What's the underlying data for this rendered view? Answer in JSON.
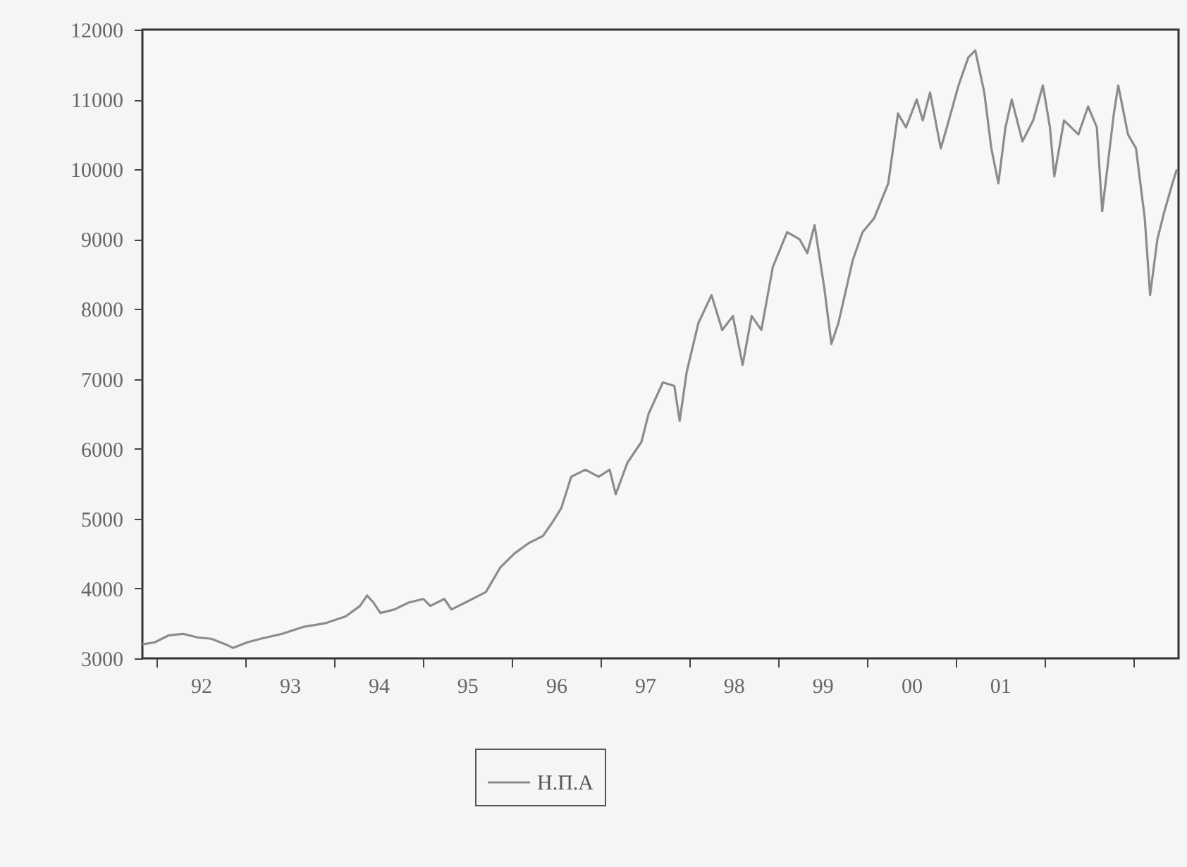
{
  "chart_data": {
    "type": "line",
    "x": [
      "1991-11-03",
      "1991-12-24",
      "1992-02-20",
      "1992-04-19",
      "1992-06-16",
      "1992-08-13",
      "1992-10-11",
      "1992-11-09",
      "1993-01-08",
      "1993-03-03",
      "1993-05-30",
      "1993-08-25",
      "1993-11-21",
      "1994-02-16",
      "1994-04-16",
      "1994-05-15",
      "1994-06-10",
      "1994-07-09",
      "1994-09-05",
      "1994-11-03",
      "1995-01-02",
      "1995-01-30",
      "1995-03-29",
      "1995-04-27",
      "1995-06-24",
      "1995-09-16",
      "1995-11-14",
      "1996-01-11",
      "1996-03-10",
      "1996-05-07",
      "1996-06-16",
      "1996-07-22",
      "1996-09-01",
      "1996-10-29",
      "1996-12-23",
      "1997-02-06",
      "1997-03-03",
      "1997-04-20",
      "1997-06-17",
      "1997-07-16",
      "1997-09-13",
      "1997-10-30",
      "1997-11-21",
      "1997-12-20",
      "1998-02-06",
      "1998-04-01",
      "1998-05-15",
      "1998-06-28",
      "1998-08-07",
      "1998-09-13",
      "1998-10-23",
      "1998-12-09",
      "1999-02-06",
      "1999-03-29",
      "1999-04-30",
      "1999-05-30",
      "1999-07-09",
      "1999-08-07",
      "1999-09-05",
      "1999-11-03",
      "1999-12-13",
      "2000-01-30",
      "2000-03-28",
      "2000-05-07",
      "2000-06-09",
      "2000-07-23",
      "2000-08-17",
      "2000-09-16",
      "2000-10-30",
      "2000-11-24",
      "2001-01-11",
      "2001-02-20",
      "2001-03-21",
      "2001-04-27",
      "2001-05-26",
      "2001-06-24",
      "2001-07-23",
      "2001-08-18",
      "2001-10-01",
      "2001-11-14",
      "2001-12-24",
      "2002-01-22",
      "2002-02-09",
      "2002-03-21",
      "2002-05-19",
      "2002-06-28",
      "2002-08-03",
      "2002-08-25",
      "2002-10-12",
      "2002-10-30",
      "2002-12-09",
      "2003-01-11",
      "2003-02-16",
      "2003-03-10",
      "2003-04-09",
      "2003-05-08",
      "2003-06-10",
      "2003-06-28"
    ],
    "series": [
      {
        "name": "Η.Π.Α",
        "color": "#8c8c8c",
        "values": [
          3200,
          3230,
          3330,
          3350,
          3300,
          3280,
          3200,
          3150,
          3230,
          3280,
          3350,
          3450,
          3500,
          3600,
          3750,
          3900,
          3800,
          3650,
          3700,
          3800,
          3850,
          3750,
          3850,
          3700,
          3800,
          3950,
          4300,
          4500,
          4650,
          4750,
          4950,
          5150,
          5600,
          5700,
          5600,
          5700,
          5350,
          5800,
          6100,
          6500,
          6950,
          6900,
          6400,
          7100,
          7800,
          8200,
          7700,
          7900,
          7200,
          7900,
          7700,
          8600,
          9100,
          9000,
          8800,
          9200,
          8300,
          7500,
          7800,
          8700,
          9100,
          9300,
          9800,
          10800,
          10600,
          11000,
          10700,
          11100,
          10300,
          10600,
          11200,
          11600,
          11700,
          11100,
          10300,
          9800,
          10600,
          11000,
          10400,
          10700,
          11200,
          10600,
          9900,
          10700,
          10500,
          10900,
          10600,
          9400,
          10800,
          11200,
          10500,
          10300,
          9300,
          8200,
          9000,
          9400,
          9800,
          10000
        ]
      }
    ],
    "xlim": [
      "1991-11-03",
      "2003-07-05"
    ],
    "xticks": [
      {
        "value": "1992-01-01",
        "label": null
      },
      {
        "value": "1992-07-01",
        "label": "92"
      },
      {
        "value": "1993-01-01",
        "label": null
      },
      {
        "value": "1993-07-01",
        "label": "93"
      },
      {
        "value": "1994-01-01",
        "label": null
      },
      {
        "value": "1994-07-01",
        "label": "94"
      },
      {
        "value": "1995-01-01",
        "label": null
      },
      {
        "value": "1995-07-01",
        "label": "95"
      },
      {
        "value": "1996-01-01",
        "label": null
      },
      {
        "value": "1996-07-01",
        "label": "96"
      },
      {
        "value": "1997-01-01",
        "label": null
      },
      {
        "value": "1997-07-01",
        "label": "97"
      },
      {
        "value": "1998-01-01",
        "label": null
      },
      {
        "value": "1998-07-01",
        "label": "98"
      },
      {
        "value": "1999-01-01",
        "label": null
      },
      {
        "value": "1999-07-01",
        "label": "99"
      },
      {
        "value": "2000-01-01",
        "label": null
      },
      {
        "value": "2000-07-01",
        "label": "00"
      },
      {
        "value": "2001-01-01",
        "label": null
      },
      {
        "value": "2001-07-01",
        "label": "01"
      },
      {
        "value": "2002-01-01",
        "label": null
      },
      {
        "value": "2003-01-01",
        "label": null
      }
    ],
    "ylim": [
      3000,
      12000
    ],
    "yticks": [
      3000,
      4000,
      5000,
      6000,
      7000,
      8000,
      9000,
      10000,
      11000,
      12000
    ],
    "grid": false,
    "legend": "bottom"
  }
}
